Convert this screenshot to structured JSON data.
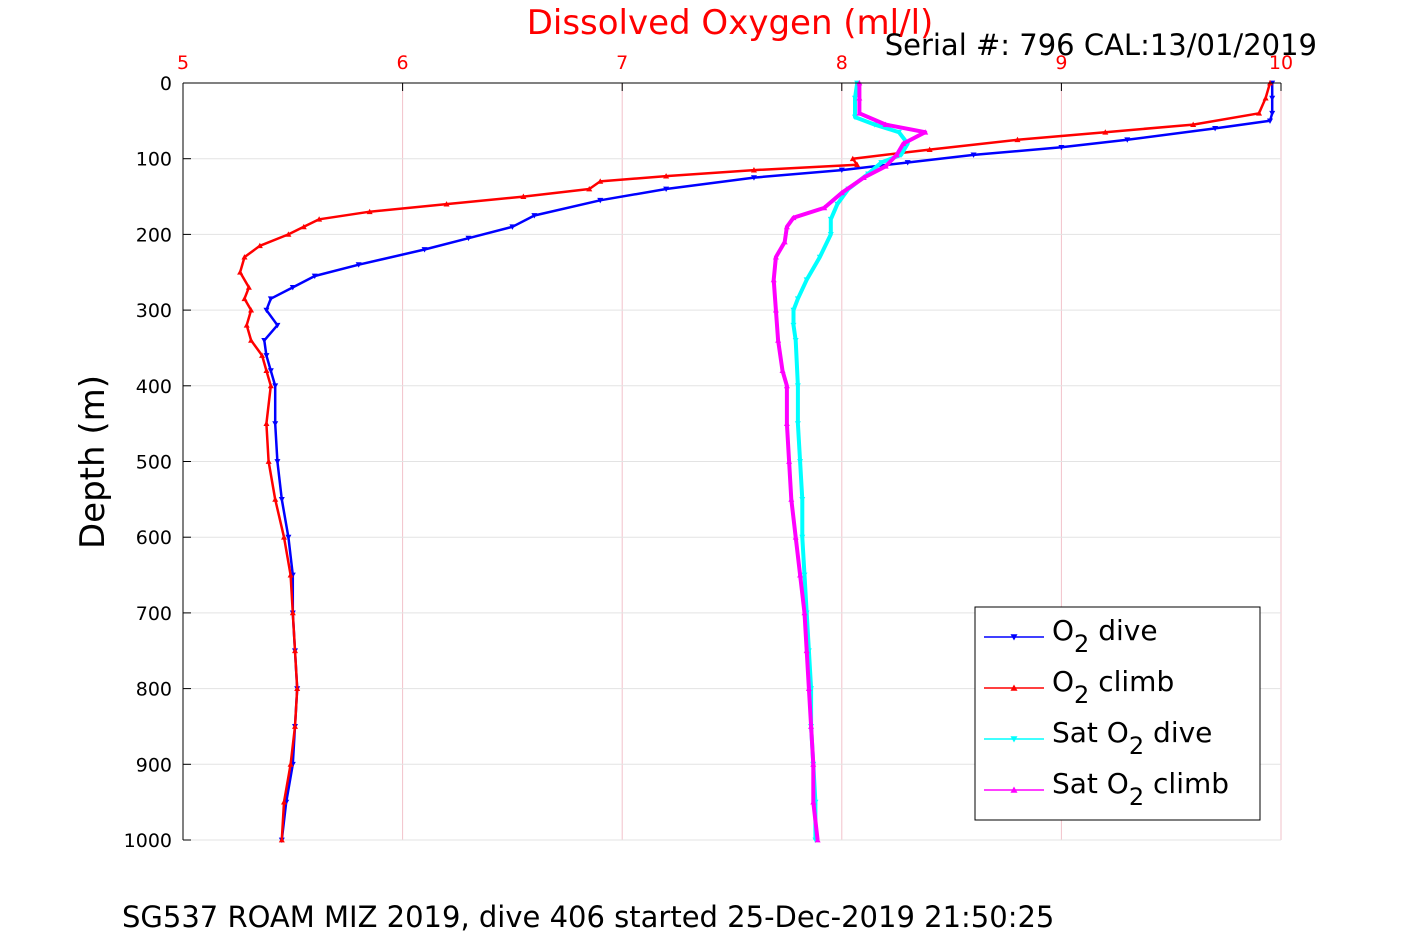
{
  "chart_data": {
    "type": "line",
    "title": "Dissolved Oxygen (ml/l)",
    "annotation": "Serial #: 796  CAL:13/01/2019",
    "footer": "SG537 ROAM MIZ 2019, dive 406 started 25-Dec-2019 21:50:25",
    "xlabel": "",
    "ylabel": "Depth (m)",
    "xlim": [
      5,
      10
    ],
    "ylim": [
      0,
      1000
    ],
    "y_reversed": true,
    "x_axis_position": "top",
    "x_ticks": [
      "5",
      "6",
      "7",
      "8",
      "9",
      "10"
    ],
    "y_ticks": [
      "0",
      "100",
      "200",
      "300",
      "400",
      "500",
      "600",
      "700",
      "800",
      "900",
      "1000"
    ],
    "grid": true,
    "legend_position": "bottom-right",
    "colors": {
      "title": "#ff0000",
      "x_tick": "#ff0000",
      "grid": "#f2c2ca",
      "axis": "#000000"
    },
    "series": [
      {
        "name": "O2 dive",
        "legend_main": "O",
        "legend_sub": "2",
        "legend_rest": " dive",
        "color": "#0000ff",
        "marker": "triangle-down",
        "points": [
          [
            9.96,
            0
          ],
          [
            9.96,
            20
          ],
          [
            9.96,
            40
          ],
          [
            9.95,
            50
          ],
          [
            9.7,
            60
          ],
          [
            9.3,
            75
          ],
          [
            9.0,
            85
          ],
          [
            8.6,
            95
          ],
          [
            8.3,
            105
          ],
          [
            8.0,
            115
          ],
          [
            7.6,
            125
          ],
          [
            7.2,
            140
          ],
          [
            6.9,
            155
          ],
          [
            6.6,
            175
          ],
          [
            6.5,
            190
          ],
          [
            6.3,
            205
          ],
          [
            6.1,
            220
          ],
          [
            5.8,
            240
          ],
          [
            5.6,
            255
          ],
          [
            5.5,
            270
          ],
          [
            5.4,
            285
          ],
          [
            5.38,
            300
          ],
          [
            5.43,
            320
          ],
          [
            5.37,
            340
          ],
          [
            5.38,
            360
          ],
          [
            5.4,
            380
          ],
          [
            5.42,
            400
          ],
          [
            5.42,
            450
          ],
          [
            5.43,
            500
          ],
          [
            5.45,
            550
          ],
          [
            5.48,
            600
          ],
          [
            5.5,
            650
          ],
          [
            5.5,
            700
          ],
          [
            5.51,
            750
          ],
          [
            5.52,
            800
          ],
          [
            5.51,
            850
          ],
          [
            5.5,
            900
          ],
          [
            5.47,
            950
          ],
          [
            5.45,
            1000
          ]
        ]
      },
      {
        "name": "O2 climb",
        "legend_main": "O",
        "legend_sub": "2",
        "legend_rest": " climb",
        "color": "#ff0000",
        "marker": "triangle-up",
        "points": [
          [
            9.95,
            0
          ],
          [
            9.93,
            20
          ],
          [
            9.9,
            40
          ],
          [
            9.6,
            55
          ],
          [
            9.2,
            65
          ],
          [
            8.8,
            75
          ],
          [
            8.4,
            88
          ],
          [
            8.05,
            100
          ],
          [
            8.07,
            108
          ],
          [
            7.6,
            115
          ],
          [
            7.2,
            123
          ],
          [
            6.9,
            130
          ],
          [
            6.85,
            140
          ],
          [
            6.55,
            150
          ],
          [
            6.2,
            160
          ],
          [
            5.85,
            170
          ],
          [
            5.62,
            180
          ],
          [
            5.55,
            190
          ],
          [
            5.48,
            200
          ],
          [
            5.35,
            215
          ],
          [
            5.28,
            230
          ],
          [
            5.26,
            250
          ],
          [
            5.3,
            270
          ],
          [
            5.28,
            285
          ],
          [
            5.31,
            300
          ],
          [
            5.29,
            320
          ],
          [
            5.31,
            340
          ],
          [
            5.36,
            360
          ],
          [
            5.38,
            380
          ],
          [
            5.4,
            400
          ],
          [
            5.38,
            450
          ],
          [
            5.39,
            500
          ],
          [
            5.42,
            550
          ],
          [
            5.46,
            600
          ],
          [
            5.49,
            650
          ],
          [
            5.5,
            700
          ],
          [
            5.51,
            750
          ],
          [
            5.52,
            800
          ],
          [
            5.51,
            850
          ],
          [
            5.49,
            900
          ],
          [
            5.46,
            950
          ],
          [
            5.45,
            1000
          ]
        ]
      },
      {
        "name": "Sat O2 dive",
        "legend_main": "Sat O",
        "legend_sub": "2",
        "legend_rest": " dive",
        "color": "#00ffff",
        "marker": "triangle-down",
        "points": [
          [
            8.07,
            0
          ],
          [
            8.06,
            20
          ],
          [
            8.06,
            45
          ],
          [
            8.15,
            55
          ],
          [
            8.26,
            65
          ],
          [
            8.3,
            80
          ],
          [
            8.27,
            95
          ],
          [
            8.18,
            105
          ],
          [
            8.12,
            120
          ],
          [
            8.03,
            140
          ],
          [
            7.98,
            160
          ],
          [
            7.95,
            180
          ],
          [
            7.95,
            200
          ],
          [
            7.9,
            230
          ],
          [
            7.84,
            260
          ],
          [
            7.8,
            285
          ],
          [
            7.78,
            300
          ],
          [
            7.78,
            320
          ],
          [
            7.79,
            340
          ],
          [
            7.8,
            400
          ],
          [
            7.8,
            450
          ],
          [
            7.81,
            500
          ],
          [
            7.82,
            550
          ],
          [
            7.82,
            600
          ],
          [
            7.83,
            650
          ],
          [
            7.84,
            700
          ],
          [
            7.85,
            750
          ],
          [
            7.86,
            800
          ],
          [
            7.86,
            850
          ],
          [
            7.87,
            900
          ],
          [
            7.88,
            950
          ],
          [
            7.88,
            1000
          ]
        ]
      },
      {
        "name": "Sat O2 climb",
        "legend_main": "Sat O",
        "legend_sub": "2",
        "legend_rest": " climb",
        "color": "#ff00ff",
        "marker": "triangle-up",
        "points": [
          [
            8.08,
            0
          ],
          [
            8.08,
            20
          ],
          [
            8.08,
            40
          ],
          [
            8.2,
            55
          ],
          [
            8.38,
            65
          ],
          [
            8.28,
            80
          ],
          [
            8.25,
            95
          ],
          [
            8.2,
            110
          ],
          [
            8.1,
            125
          ],
          [
            8.0,
            145
          ],
          [
            7.92,
            165
          ],
          [
            7.78,
            178
          ],
          [
            7.75,
            190
          ],
          [
            7.74,
            210
          ],
          [
            7.7,
            230
          ],
          [
            7.69,
            260
          ],
          [
            7.7,
            300
          ],
          [
            7.71,
            340
          ],
          [
            7.73,
            380
          ],
          [
            7.75,
            400
          ],
          [
            7.75,
            450
          ],
          [
            7.76,
            500
          ],
          [
            7.77,
            550
          ],
          [
            7.79,
            600
          ],
          [
            7.81,
            650
          ],
          [
            7.83,
            700
          ],
          [
            7.84,
            750
          ],
          [
            7.85,
            800
          ],
          [
            7.86,
            850
          ],
          [
            7.87,
            900
          ],
          [
            7.87,
            950
          ],
          [
            7.89,
            1000
          ]
        ]
      }
    ]
  }
}
